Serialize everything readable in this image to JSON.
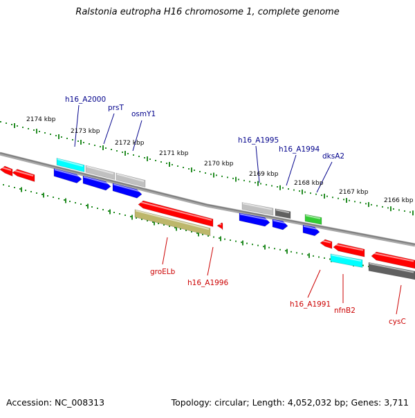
{
  "title": "Ralstonia eutropha H16 chromosome 1, complete genome",
  "footer": {
    "accession": "Accession: NC_008313",
    "summary": "Topology: circular; Length: 4,052,032 bp; Genes: 3,711"
  },
  "colors": {
    "backbone": "#808080",
    "tick": "#228b22",
    "forward_label": "#00008b",
    "reverse_label": "#cc0000",
    "red": "#ff0000",
    "blue": "#0000ff",
    "cyan": "#00ffff",
    "gray": "#c0c0c0",
    "darkgray": "#606060",
    "green": "#33cc33",
    "olive": "#bdb76b"
  },
  "scale_labels": [
    "2174 kbp",
    "2173 kbp",
    "2172 kbp",
    "2171 kbp",
    "2170 kbp",
    "2169 kbp",
    "2168 kbp",
    "2167 kbp",
    "2166 kbp"
  ],
  "gene_labels_forward": [
    "h16_A2000",
    "prsT",
    "osmY1",
    "h16_A1995",
    "h16_A1994",
    "dksA2"
  ],
  "gene_labels_reverse": [
    "groELb",
    "h16_A1996",
    "h16_A1991",
    "nfnB2",
    "cysC"
  ]
}
